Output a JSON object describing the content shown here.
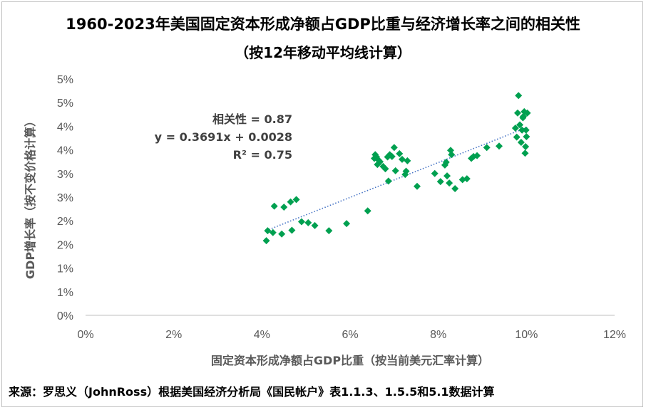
{
  "chart_data": {
    "type": "scatter",
    "title": "1960-2023年美国固定资本形成净额占GDP比重与经济增长率之间的相关性",
    "subtitle": "（按12年移动平均线计算）",
    "xlabel": "固定资本形成净额占GDP比重（按当前美元汇率计算）",
    "ylabel": "GDP增长率（按不变价格计算）",
    "xlim": [
      0,
      0.12
    ],
    "ylim": [
      0,
      0.05
    ],
    "x_ticks": [
      0,
      0.02,
      0.04,
      0.06,
      0.08,
      0.1,
      0.12
    ],
    "x_tick_labels": [
      "0%",
      "2%",
      "4%",
      "6%",
      "8%",
      "10%",
      "12%"
    ],
    "y_ticks": [
      0,
      0.005,
      0.01,
      0.015,
      0.02,
      0.025,
      0.03,
      0.035,
      0.04,
      0.045,
      0.05
    ],
    "y_tick_labels": [
      "0%",
      "1%",
      "1%",
      "2%",
      "2%",
      "3%",
      "3%",
      "4%",
      "4%",
      "5%",
      "5%"
    ],
    "grid": {
      "horizontal": false,
      "vertical": false
    },
    "marker": "diamond",
    "marker_color": "#00a050",
    "trendline": {
      "type": "linear",
      "slope": 0.3691,
      "intercept": 0.0028,
      "color": "#4472c4",
      "style": "dotted"
    },
    "annotations": [
      "相关性 = 0.87",
      "y = 0.3691x + 0.0028",
      "R² = 0.75"
    ],
    "points": [
      [
        0.041,
        0.0158
      ],
      [
        0.0413,
        0.0179
      ],
      [
        0.0425,
        0.0175
      ],
      [
        0.0428,
        0.0231
      ],
      [
        0.0445,
        0.0172
      ],
      [
        0.045,
        0.0229
      ],
      [
        0.0465,
        0.024
      ],
      [
        0.0468,
        0.018
      ],
      [
        0.0478,
        0.0245
      ],
      [
        0.049,
        0.0198
      ],
      [
        0.0505,
        0.0196
      ],
      [
        0.052,
        0.019
      ],
      [
        0.0552,
        0.0179
      ],
      [
        0.0592,
        0.0194
      ],
      [
        0.064,
        0.0221
      ],
      [
        0.0655,
        0.0332
      ],
      [
        0.0657,
        0.034
      ],
      [
        0.066,
        0.0335
      ],
      [
        0.0662,
        0.0319
      ],
      [
        0.0665,
        0.0328
      ],
      [
        0.0668,
        0.0325
      ],
      [
        0.0675,
        0.0315
      ],
      [
        0.068,
        0.031
      ],
      [
        0.0685,
        0.0335
      ],
      [
        0.0687,
        0.0284
      ],
      [
        0.069,
        0.034
      ],
      [
        0.0695,
        0.0336
      ],
      [
        0.07,
        0.0355
      ],
      [
        0.0703,
        0.0306
      ],
      [
        0.0712,
        0.0342
      ],
      [
        0.0718,
        0.033
      ],
      [
        0.0725,
        0.0298
      ],
      [
        0.0727,
        0.0305
      ],
      [
        0.073,
        0.0327
      ],
      [
        0.0752,
        0.0273
      ],
      [
        0.0792,
        0.03
      ],
      [
        0.0805,
        0.0283
      ],
      [
        0.0815,
        0.0318
      ],
      [
        0.0818,
        0.0324
      ],
      [
        0.082,
        0.0295
      ],
      [
        0.0825,
        0.028
      ],
      [
        0.0828,
        0.0349
      ],
      [
        0.083,
        0.034
      ],
      [
        0.0838,
        0.0268
      ],
      [
        0.0855,
        0.0287
      ],
      [
        0.0865,
        0.0289
      ],
      [
        0.0875,
        0.0332
      ],
      [
        0.088,
        0.0336
      ],
      [
        0.0888,
        0.0338
      ],
      [
        0.091,
        0.0355
      ],
      [
        0.0938,
        0.0358
      ],
      [
        0.0975,
        0.0396
      ],
      [
        0.0978,
        0.0377
      ],
      [
        0.098,
        0.0428
      ],
      [
        0.0982,
        0.0465
      ],
      [
        0.0985,
        0.0403
      ],
      [
        0.0988,
        0.0366
      ],
      [
        0.099,
        0.0392
      ],
      [
        0.0992,
        0.0418
      ],
      [
        0.0993,
        0.0421
      ],
      [
        0.0995,
        0.0431
      ],
      [
        0.0997,
        0.0343
      ],
      [
        0.0998,
        0.0357
      ],
      [
        0.0999,
        0.0392
      ],
      [
        0.1,
        0.0378
      ],
      [
        0.1002,
        0.0428
      ]
    ]
  },
  "source": "来源：罗思义（JohnRoss）根据美国经济分析局《国民帐户》表1.1.3、1.5.5和5.1数据计算"
}
